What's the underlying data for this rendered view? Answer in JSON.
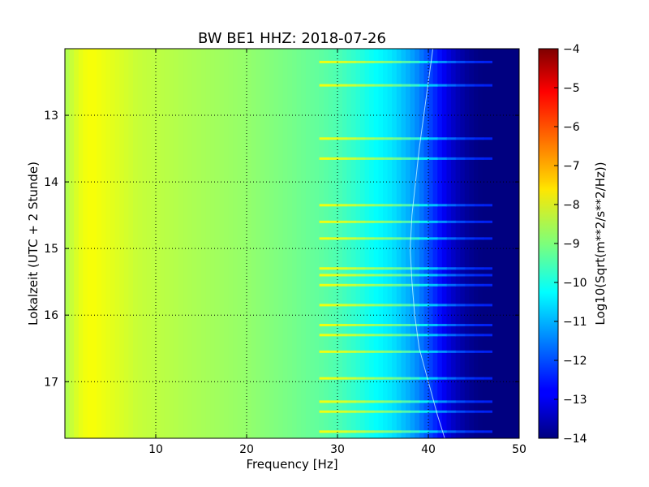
{
  "chart_data": {
    "type": "heatmap",
    "title": "BW BE1 HHZ: 2018-07-26",
    "xlabel": "Frequency [Hz]",
    "ylabel": "Lokalzeit (UTC + 2 Stunde)",
    "colorbar_label": "Log10(Sqrt(m**2/s**2/Hz))",
    "xlim": [
      0,
      50
    ],
    "ylim": [
      12.0,
      17.85
    ],
    "y_inverted": true,
    "x_ticks": [
      10,
      20,
      30,
      40,
      50
    ],
    "x_tick_labels": [
      "10",
      "20",
      "30",
      "40",
      "50"
    ],
    "y_ticks": [
      13,
      14,
      15,
      16,
      17
    ],
    "y_tick_labels": [
      "13",
      "14",
      "15",
      "16",
      "17"
    ],
    "color_range": [
      -14,
      -4
    ],
    "colorbar_ticks": [
      -4,
      -5,
      -6,
      -7,
      -8,
      -9,
      -10,
      -11,
      -12,
      -13,
      -14
    ],
    "colorbar_tick_labels": [
      "−4",
      "−5",
      "−6",
      "−7",
      "−8",
      "−9",
      "−10",
      "−11",
      "−12",
      "−13",
      "−14"
    ],
    "colormap": "jet",
    "grid": true,
    "frequency_profile": {
      "frequency_hz": [
        0,
        1,
        2,
        3,
        5,
        8,
        10,
        15,
        20,
        25,
        28,
        30,
        32,
        34,
        36,
        37,
        38,
        39,
        40,
        41,
        42,
        43,
        44,
        45,
        46,
        47,
        50
      ],
      "log10_amplitude": [
        -8.6,
        -8.2,
        -7.9,
        -7.8,
        -8.0,
        -8.3,
        -8.4,
        -8.6,
        -8.8,
        -9.1,
        -9.3,
        -9.5,
        -9.8,
        -10.2,
        -10.5,
        -10.8,
        -11.1,
        -11.5,
        -12.0,
        -12.5,
        -13.0,
        -13.4,
        -13.7,
        -13.9,
        -14.0,
        -14.0,
        -14.0
      ]
    },
    "horizontal_bands_hours": [
      12.2,
      12.55,
      13.35,
      13.65,
      14.35,
      14.6,
      14.85,
      15.3,
      15.4,
      15.55,
      15.85,
      16.15,
      16.3,
      16.55,
      16.95,
      17.3,
      17.45,
      17.75
    ],
    "spectral_line": {
      "hours": [
        12.0,
        12.5,
        13.0,
        13.5,
        14.0,
        14.5,
        15.0,
        15.5,
        16.0,
        16.5,
        17.0,
        17.5,
        17.85
      ],
      "frequency_hz": [
        40.5,
        40.0,
        39.5,
        39.0,
        38.6,
        38.2,
        38.0,
        38.2,
        38.5,
        39.0,
        40.0,
        41.0,
        41.8
      ]
    }
  }
}
